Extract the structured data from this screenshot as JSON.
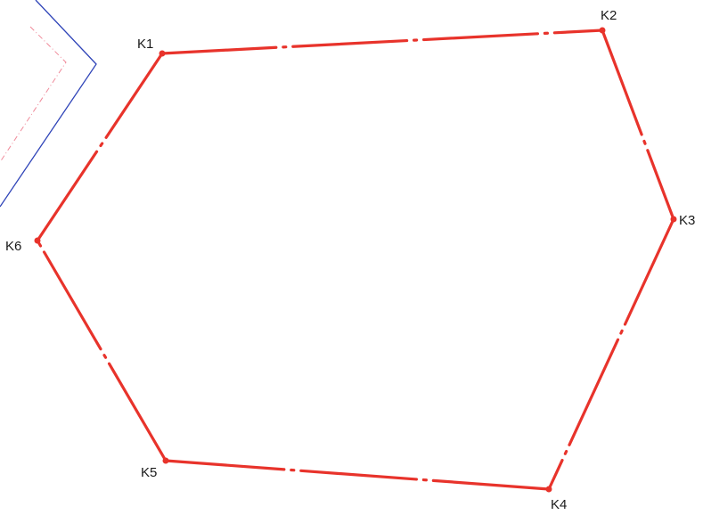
{
  "vertices": [
    {
      "label": "K1"
    },
    {
      "label": "K2"
    },
    {
      "label": "K3"
    },
    {
      "label": "K4"
    },
    {
      "label": "K5"
    },
    {
      "label": "K6"
    }
  ],
  "colors": {
    "boundary": "#e8332b",
    "neighbor_outer": "#2f44b8",
    "neighbor_inner": "#f08a9a",
    "background": "#ffffff"
  }
}
